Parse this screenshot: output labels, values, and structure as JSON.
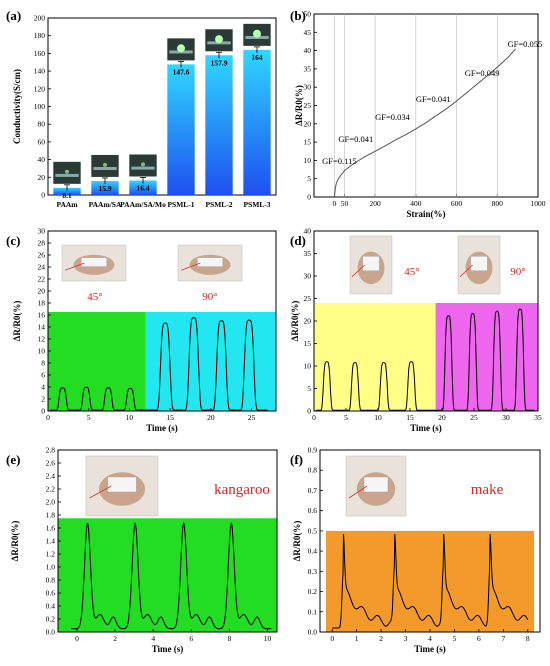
{
  "chart_data": [
    {
      "panel": "(a)",
      "type": "bar",
      "categories": [
        "PAAm",
        "PAAm/SA",
        "PAAm/SA/Mo",
        "PSML-1",
        "PSML-2",
        "PSML-3"
      ],
      "values": [
        8.1,
        15.9,
        16.4,
        147.6,
        157.9,
        164
      ],
      "value_labels": [
        "8.1",
        "15.9",
        "16.4",
        "147.6",
        "157.9",
        "164"
      ],
      "ylabel": "Conductivity(S/cm)",
      "ylim": [
        0,
        200
      ],
      "yticks": [
        0,
        20,
        40,
        60,
        80,
        100,
        120,
        140,
        160,
        180,
        200
      ]
    },
    {
      "panel": "(b)",
      "type": "line",
      "xlabel": "Strain(%)",
      "ylabel": "ΔR/R0(%)",
      "xlim": [
        -100,
        1000
      ],
      "ylim": [
        0,
        50
      ],
      "xticks": [
        0,
        50,
        200,
        400,
        600,
        800,
        1000
      ],
      "annotations": [
        "GF=0.115",
        "GF=0.041",
        "GF=0.034",
        "GF=0.041",
        "GF=0.049",
        "GF=0.055"
      ],
      "x": [
        0,
        5,
        10,
        20,
        35,
        50,
        75,
        100,
        150,
        200,
        250,
        300,
        350,
        400,
        450,
        500,
        550,
        600,
        650,
        700,
        750,
        800,
        850,
        890
      ],
      "y": [
        0,
        2.6,
        3.8,
        5.0,
        6.2,
        7.2,
        8.3,
        9.3,
        11.0,
        12.5,
        14.0,
        15.6,
        17.0,
        18.6,
        20.3,
        22.2,
        24.1,
        26.2,
        28.5,
        30.8,
        33.1,
        35.5,
        38.0,
        40.5
      ]
    },
    {
      "panel": "(c)",
      "type": "line",
      "xlabel": "Time (s)",
      "ylabel": "ΔR/R0(%)",
      "xlim": [
        0,
        28
      ],
      "ylim": [
        0,
        30
      ],
      "xticks": [
        0,
        5,
        10,
        15,
        20,
        25
      ],
      "yticks": [
        0,
        2,
        4,
        6,
        8,
        10,
        12,
        14,
        16,
        18,
        20,
        22,
        24,
        26,
        28,
        30
      ],
      "annotations": [
        "45°",
        "90°"
      ],
      "regions": [
        {
          "from": 0,
          "to": 12,
          "color": "#22dd22"
        },
        {
          "from": 12,
          "to": 28,
          "color": "#22e6f0"
        }
      ],
      "pulses": [
        {
          "t": 1.8,
          "h": 3.7,
          "w": 0.5
        },
        {
          "t": 4.7,
          "h": 3.8,
          "w": 0.5
        },
        {
          "t": 7.4,
          "h": 3.7,
          "w": 0.5
        },
        {
          "t": 10.1,
          "h": 3.6,
          "w": 0.5
        },
        {
          "t": 14.4,
          "h": 14.5,
          "w": 0.65
        },
        {
          "t": 17.9,
          "h": 15.4,
          "w": 0.65
        },
        {
          "t": 21.3,
          "h": 14.9,
          "w": 0.65
        },
        {
          "t": 24.7,
          "h": 15.0,
          "w": 0.65
        }
      ]
    },
    {
      "panel": "(d)",
      "type": "line",
      "xlabel": "Time (s)",
      "ylabel": "ΔR/R0(%)",
      "xlim": [
        0,
        35
      ],
      "ylim": [
        0,
        40
      ],
      "xticks": [
        0,
        5,
        10,
        15,
        20,
        25,
        30,
        35
      ],
      "yticks": [
        0,
        5,
        10,
        15,
        20,
        25,
        30,
        35,
        40
      ],
      "annotations": [
        "45°",
        "90°"
      ],
      "regions": [
        {
          "from": 0,
          "to": 19,
          "color": "#ffff88"
        },
        {
          "from": 19,
          "to": 35,
          "color": "#ee66ee"
        }
      ],
      "pulses": [
        {
          "t": 2.0,
          "h": 10.8,
          "w": 0.6
        },
        {
          "t": 6.4,
          "h": 10.6,
          "w": 0.6
        },
        {
          "t": 10.9,
          "h": 10.6,
          "w": 0.6
        },
        {
          "t": 15.2,
          "h": 10.8,
          "w": 0.6
        },
        {
          "t": 21.0,
          "h": 21.0,
          "w": 0.6
        },
        {
          "t": 24.8,
          "h": 21.5,
          "w": 0.6
        },
        {
          "t": 28.6,
          "h": 22.0,
          "w": 0.6
        },
        {
          "t": 32.2,
          "h": 22.5,
          "w": 0.6
        }
      ]
    },
    {
      "panel": "(e)",
      "type": "line",
      "xlabel": "Time (s)",
      "ylabel": "ΔR/R0(%)",
      "xlim": [
        -1,
        10.5
      ],
      "ylim": [
        0,
        2.8
      ],
      "xticks": [
        0,
        2,
        4,
        6,
        8,
        10
      ],
      "yticks": [
        0.0,
        0.2,
        0.4,
        0.6,
        0.8,
        1.0,
        1.2,
        1.4,
        1.6,
        1.8,
        2.0,
        2.2,
        2.4,
        2.6,
        2.8
      ],
      "annotation": "kangaroo",
      "region_color": "#22dd22",
      "peaks": [
        0.55,
        3.05,
        5.6,
        8.1
      ],
      "peak_height": 1.62,
      "period": 2.5
    },
    {
      "panel": "(f)",
      "type": "line",
      "xlabel": "Time (s)",
      "ylabel": "ΔR/R0(%)",
      "xlim": [
        -0.5,
        8.5
      ],
      "ylim": [
        0,
        0.9
      ],
      "xticks": [
        0,
        1,
        2,
        3,
        4,
        5,
        6,
        7,
        8
      ],
      "yticks": [
        0.0,
        0.1,
        0.2,
        0.3,
        0.4,
        0.5,
        0.6,
        0.7,
        0.8,
        0.9
      ],
      "annotation": "make",
      "region_color": "#f39a2b",
      "peaks": [
        0.45,
        2.55,
        4.55,
        6.45
      ],
      "peak_height": 0.45
    }
  ]
}
